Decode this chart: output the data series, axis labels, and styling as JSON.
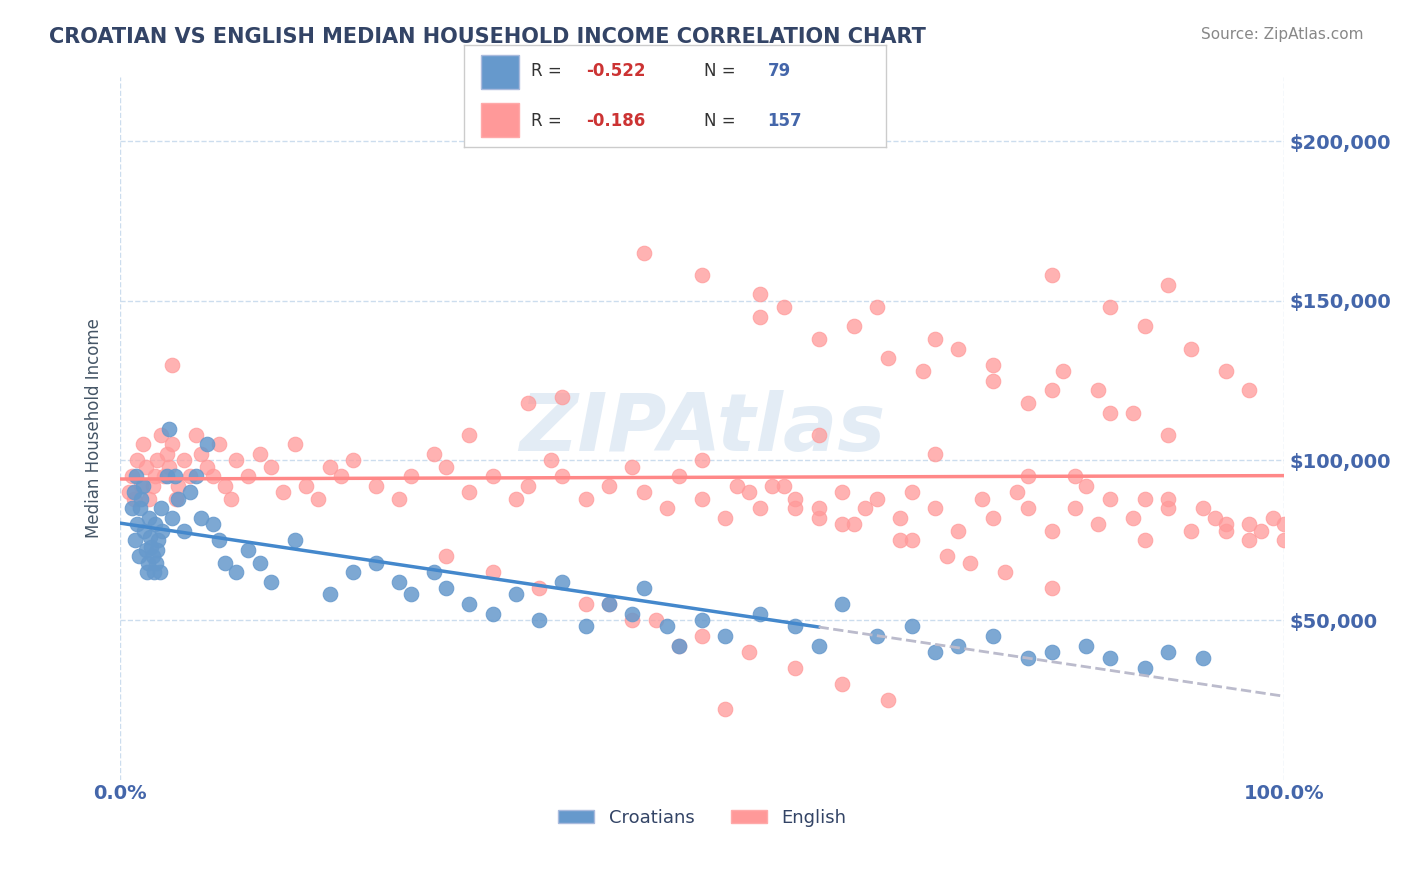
{
  "title": "CROATIAN VS ENGLISH MEDIAN HOUSEHOLD INCOME CORRELATION CHART",
  "source_text": "Source: ZipAtlas.com",
  "ylabel": "Median Household Income",
  "ytick_labels": [
    "$50,000",
    "$100,000",
    "$150,000",
    "$200,000"
  ],
  "ytick_values": [
    50000,
    100000,
    150000,
    200000
  ],
  "xlim": [
    0.0,
    1.0
  ],
  "ylim": [
    0,
    220000
  ],
  "croatian_R": -0.522,
  "croatian_N": 79,
  "english_R": -0.186,
  "english_N": 157,
  "blue_color": "#6699CC",
  "pink_color": "#FF9999",
  "blue_line_color": "#4488CC",
  "pink_line_color": "#FF8888",
  "dashed_line_color": "#BBBBCC",
  "watermark_color": "#CCDDEE",
  "title_color": "#334466",
  "axis_label_color": "#445566",
  "tick_color": "#4466AA",
  "source_color": "#888888",
  "grid_color": "#CCDDEE",
  "background_color": "#FFFFFF",
  "blue_scatter_x": [
    0.01,
    0.012,
    0.013,
    0.014,
    0.015,
    0.016,
    0.017,
    0.018,
    0.02,
    0.021,
    0.022,
    0.023,
    0.024,
    0.025,
    0.026,
    0.027,
    0.028,
    0.029,
    0.03,
    0.031,
    0.032,
    0.033,
    0.034,
    0.035,
    0.036,
    0.04,
    0.042,
    0.045,
    0.047,
    0.05,
    0.055,
    0.06,
    0.065,
    0.07,
    0.075,
    0.08,
    0.085,
    0.09,
    0.1,
    0.11,
    0.12,
    0.13,
    0.15,
    0.18,
    0.2,
    0.22,
    0.24,
    0.25,
    0.27,
    0.28,
    0.3,
    0.32,
    0.34,
    0.36,
    0.38,
    0.4,
    0.42,
    0.44,
    0.45,
    0.47,
    0.48,
    0.5,
    0.52,
    0.55,
    0.58,
    0.6,
    0.62,
    0.65,
    0.68,
    0.7,
    0.72,
    0.75,
    0.78,
    0.8,
    0.83,
    0.85,
    0.88,
    0.9,
    0.93
  ],
  "blue_scatter_y": [
    85000,
    90000,
    75000,
    95000,
    80000,
    70000,
    85000,
    88000,
    92000,
    78000,
    72000,
    65000,
    68000,
    82000,
    76000,
    73000,
    70000,
    65000,
    80000,
    68000,
    72000,
    75000,
    65000,
    85000,
    78000,
    95000,
    110000,
    82000,
    95000,
    88000,
    78000,
    90000,
    95000,
    82000,
    105000,
    80000,
    75000,
    68000,
    65000,
    72000,
    68000,
    62000,
    75000,
    58000,
    65000,
    68000,
    62000,
    58000,
    65000,
    60000,
    55000,
    52000,
    58000,
    50000,
    62000,
    48000,
    55000,
    52000,
    60000,
    48000,
    42000,
    50000,
    45000,
    52000,
    48000,
    42000,
    55000,
    45000,
    48000,
    40000,
    42000,
    45000,
    38000,
    40000,
    42000,
    38000,
    35000,
    40000,
    38000
  ],
  "pink_scatter_x": [
    0.008,
    0.01,
    0.012,
    0.015,
    0.018,
    0.02,
    0.022,
    0.025,
    0.028,
    0.03,
    0.032,
    0.035,
    0.038,
    0.04,
    0.042,
    0.045,
    0.048,
    0.05,
    0.055,
    0.06,
    0.065,
    0.07,
    0.075,
    0.08,
    0.085,
    0.09,
    0.095,
    0.1,
    0.11,
    0.12,
    0.13,
    0.14,
    0.15,
    0.16,
    0.17,
    0.18,
    0.19,
    0.2,
    0.22,
    0.24,
    0.25,
    0.27,
    0.28,
    0.3,
    0.32,
    0.34,
    0.35,
    0.37,
    0.38,
    0.4,
    0.42,
    0.44,
    0.45,
    0.47,
    0.48,
    0.5,
    0.52,
    0.54,
    0.55,
    0.57,
    0.58,
    0.6,
    0.62,
    0.64,
    0.65,
    0.67,
    0.68,
    0.7,
    0.72,
    0.74,
    0.75,
    0.77,
    0.78,
    0.8,
    0.82,
    0.84,
    0.85,
    0.87,
    0.88,
    0.9,
    0.92,
    0.94,
    0.95,
    0.97,
    0.98,
    0.99,
    1.0,
    0.045,
    0.38,
    0.55,
    0.57,
    0.6,
    0.63,
    0.66,
    0.69,
    0.72,
    0.75,
    0.78,
    0.81,
    0.84,
    0.87,
    0.9,
    0.8,
    0.85,
    0.88,
    0.92,
    0.95,
    0.97,
    0.65,
    0.7,
    0.75,
    0.8,
    0.85,
    0.9,
    0.45,
    0.5,
    0.55,
    0.3,
    0.35,
    0.5,
    0.6,
    0.7,
    0.82,
    0.9,
    0.95,
    0.53,
    0.58,
    0.63,
    0.68,
    0.73,
    0.78,
    0.83,
    0.88,
    0.93,
    0.97,
    1.0,
    0.28,
    0.32,
    0.36,
    0.4,
    0.44,
    0.48,
    0.52,
    0.56,
    0.6,
    0.62,
    0.67,
    0.71,
    0.76,
    0.8,
    0.42,
    0.46,
    0.5,
    0.54,
    0.58,
    0.62,
    0.66
  ],
  "pink_scatter_y": [
    90000,
    95000,
    88000,
    100000,
    92000,
    105000,
    98000,
    88000,
    92000,
    95000,
    100000,
    108000,
    95000,
    102000,
    98000,
    105000,
    88000,
    92000,
    100000,
    95000,
    108000,
    102000,
    98000,
    95000,
    105000,
    92000,
    88000,
    100000,
    95000,
    102000,
    98000,
    90000,
    105000,
    92000,
    88000,
    98000,
    95000,
    100000,
    92000,
    88000,
    95000,
    102000,
    98000,
    90000,
    95000,
    88000,
    92000,
    100000,
    95000,
    88000,
    92000,
    98000,
    90000,
    85000,
    95000,
    88000,
    82000,
    90000,
    85000,
    92000,
    88000,
    82000,
    90000,
    85000,
    88000,
    82000,
    90000,
    85000,
    78000,
    88000,
    82000,
    90000,
    85000,
    78000,
    85000,
    80000,
    88000,
    82000,
    75000,
    85000,
    78000,
    82000,
    80000,
    75000,
    78000,
    82000,
    80000,
    130000,
    120000,
    145000,
    148000,
    138000,
    142000,
    132000,
    128000,
    135000,
    125000,
    118000,
    128000,
    122000,
    115000,
    155000,
    158000,
    148000,
    142000,
    135000,
    128000,
    122000,
    148000,
    138000,
    130000,
    122000,
    115000,
    108000,
    165000,
    158000,
    152000,
    108000,
    118000,
    100000,
    108000,
    102000,
    95000,
    88000,
    78000,
    92000,
    85000,
    80000,
    75000,
    68000,
    95000,
    92000,
    88000,
    85000,
    80000,
    75000,
    70000,
    65000,
    60000,
    55000,
    50000,
    42000,
    22000,
    92000,
    85000,
    80000,
    75000,
    70000,
    65000,
    60000,
    55000,
    50000,
    45000,
    40000,
    35000,
    30000,
    25000
  ]
}
